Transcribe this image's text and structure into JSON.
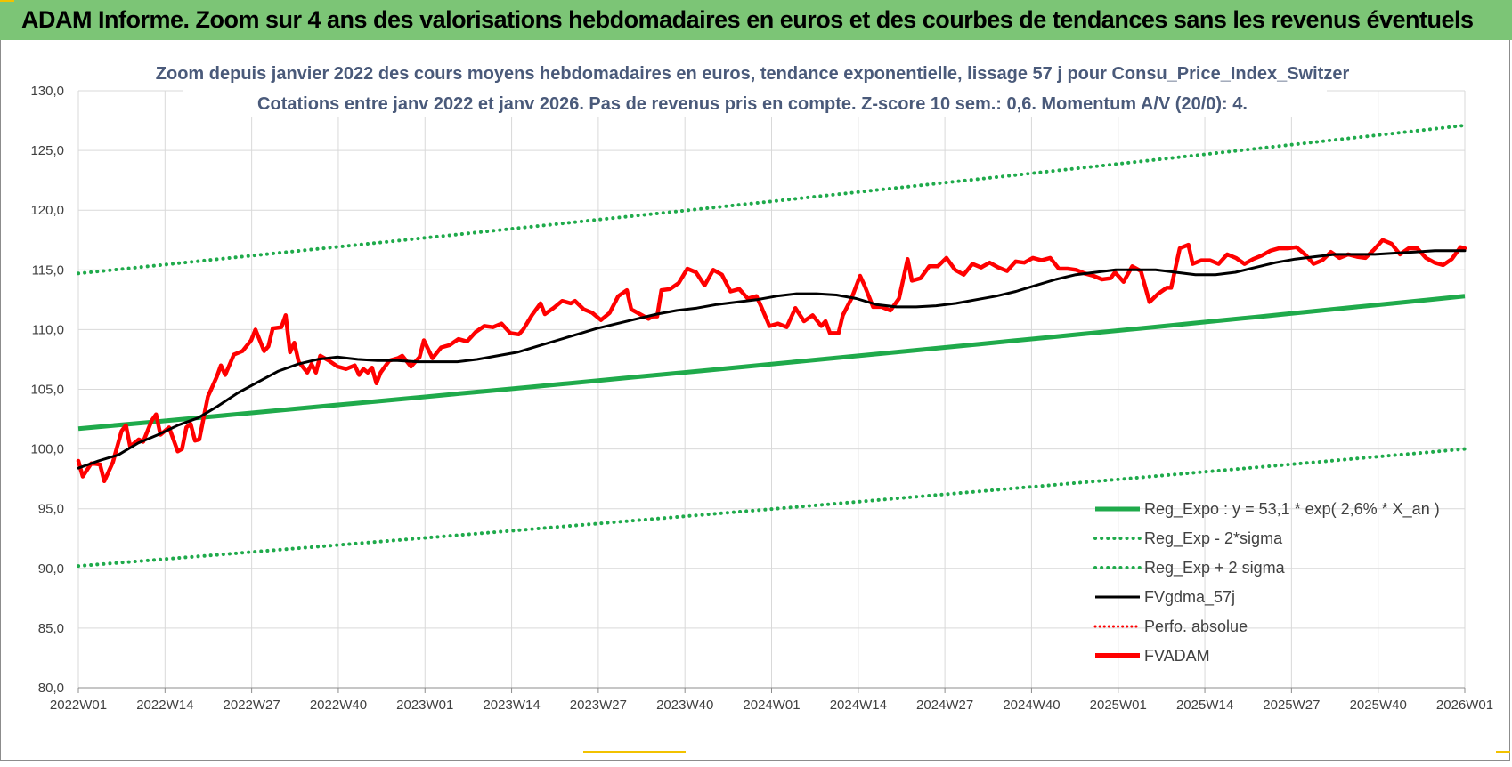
{
  "banner": {
    "title": "ADAM Informe. Zoom sur 4 ans des valorisations hebdomadaires en euros et des courbes de tendances sans les revenus éventuels"
  },
  "colors": {
    "banner_bg": "#7cc576",
    "title_text": "#4a5a7a",
    "trend": "#1faa4b",
    "band": "#1faa4b",
    "smooth": "#000000",
    "perf": "#ff0000",
    "adam": "#ff0000",
    "grid": "#d9d9d9"
  },
  "chart_data": {
    "type": "line",
    "title": "Zoom depuis janvier 2022 des cours moyens hebdomadaires en euros, tendance exponentielle, lissage 57 j pour Consu_Price_Index_Switzer",
    "subtitle": "Cotations entre janv 2022 et janv 2026. Pas de revenus pris en compte. Z-score 10 sem.: 0,6. Momentum A/V (20/0): 4.",
    "xlabel": "",
    "ylabel": "",
    "ylim": [
      80,
      130
    ],
    "y_ticks": [
      "80,0",
      "85,0",
      "90,0",
      "95,0",
      "100,0",
      "105,0",
      "110,0",
      "115,0",
      "120,0",
      "125,0",
      "130,0"
    ],
    "x_ticks": [
      "2022W01",
      "2022W14",
      "2022W27",
      "2022W40",
      "2023W01",
      "2023W14",
      "2023W27",
      "2023W40",
      "2024W01",
      "2024W14",
      "2024W27",
      "2024W40",
      "2025W01",
      "2025W14",
      "2025W27",
      "2025W40",
      "2026W01"
    ],
    "grid": true,
    "legend_position": "bottom-right",
    "series": [
      {
        "name": "Reg_Expo : y = 53,1 * exp( 2,6% *  X_an )",
        "style": "solid-thick",
        "color": "#1faa4b",
        "start": 101.7,
        "end": 112.8
      },
      {
        "name": "Reg_Exp - 2*sigma",
        "style": "dotted",
        "color": "#1faa4b",
        "start": 90.2,
        "end": 100.0
      },
      {
        "name": "Reg_Exp + 2 sigma",
        "style": "dotted",
        "color": "#1faa4b",
        "start": 114.7,
        "end": 127.1
      },
      {
        "name": "FVgdma_57j",
        "style": "solid",
        "color": "#000000",
        "anchors": [
          [
            0,
            98.4
          ],
          [
            4,
            99.0
          ],
          [
            8,
            99.5
          ],
          [
            12,
            100.5
          ],
          [
            16,
            101.2
          ],
          [
            20,
            102.0
          ],
          [
            24,
            102.6
          ],
          [
            28,
            103.6
          ],
          [
            32,
            104.7
          ],
          [
            36,
            105.6
          ],
          [
            40,
            106.5
          ],
          [
            44,
            107.1
          ],
          [
            48,
            107.5
          ],
          [
            52,
            107.7
          ],
          [
            56,
            107.5
          ],
          [
            60,
            107.4
          ],
          [
            64,
            107.4
          ],
          [
            68,
            107.3
          ],
          [
            72,
            107.3
          ],
          [
            76,
            107.3
          ],
          [
            80,
            107.5
          ],
          [
            84,
            107.8
          ],
          [
            88,
            108.1
          ],
          [
            92,
            108.6
          ],
          [
            96,
            109.1
          ],
          [
            100,
            109.6
          ],
          [
            104,
            110.1
          ],
          [
            108,
            110.5
          ],
          [
            112,
            110.9
          ],
          [
            116,
            111.3
          ],
          [
            120,
            111.6
          ],
          [
            124,
            111.8
          ],
          [
            128,
            112.1
          ],
          [
            132,
            112.3
          ],
          [
            136,
            112.5
          ],
          [
            140,
            112.8
          ],
          [
            144,
            113.0
          ],
          [
            148,
            113.0
          ],
          [
            152,
            112.9
          ],
          [
            156,
            112.6
          ],
          [
            160,
            112.1
          ],
          [
            164,
            111.9
          ],
          [
            168,
            111.9
          ],
          [
            172,
            112.0
          ],
          [
            176,
            112.2
          ],
          [
            180,
            112.5
          ],
          [
            184,
            112.8
          ],
          [
            188,
            113.2
          ],
          [
            192,
            113.7
          ],
          [
            196,
            114.2
          ],
          [
            200,
            114.6
          ],
          [
            204,
            114.8
          ],
          [
            208,
            115.0
          ],
          [
            212,
            115.0
          ],
          [
            216,
            115.0
          ],
          [
            220,
            114.8
          ],
          [
            224,
            114.6
          ],
          [
            228,
            114.6
          ],
          [
            232,
            114.8
          ],
          [
            236,
            115.2
          ],
          [
            240,
            115.6
          ],
          [
            244,
            115.9
          ],
          [
            248,
            116.1
          ],
          [
            252,
            116.3
          ],
          [
            256,
            116.3
          ],
          [
            260,
            116.3
          ],
          [
            264,
            116.4
          ],
          [
            268,
            116.5
          ],
          [
            272,
            116.6
          ],
          [
            276,
            116.6
          ],
          [
            278,
            116.6
          ]
        ]
      },
      {
        "name": "Perfo. absolue",
        "style": "dotted",
        "color": "#ff0000",
        "values": []
      },
      {
        "name": "FVADAM",
        "style": "solid-thick",
        "color": "#ff0000",
        "anchors": [
          [
            0,
            99.0
          ],
          [
            1,
            97.7
          ],
          [
            3,
            98.8
          ],
          [
            5,
            98.7
          ],
          [
            6,
            97.3
          ],
          [
            8,
            98.9
          ],
          [
            10,
            101.5
          ],
          [
            11,
            102.0
          ],
          [
            12,
            100.2
          ],
          [
            14,
            100.8
          ],
          [
            15,
            100.6
          ],
          [
            17,
            102.4
          ],
          [
            18,
            102.9
          ],
          [
            19,
            101.2
          ],
          [
            21,
            101.8
          ],
          [
            23,
            99.8
          ],
          [
            24,
            100.0
          ],
          [
            25,
            101.8
          ],
          [
            26,
            102.1
          ],
          [
            27,
            100.7
          ],
          [
            28,
            100.8
          ],
          [
            30,
            104.4
          ],
          [
            32,
            106.0
          ],
          [
            33,
            107.0
          ],
          [
            34,
            106.2
          ],
          [
            36,
            107.9
          ],
          [
            38,
            108.2
          ],
          [
            40,
            109.1
          ],
          [
            41,
            110.0
          ],
          [
            43,
            108.2
          ],
          [
            44,
            108.6
          ],
          [
            45,
            110.1
          ],
          [
            47,
            110.2
          ],
          [
            48,
            111.2
          ],
          [
            49,
            108.1
          ],
          [
            50,
            108.9
          ],
          [
            51,
            107.3
          ],
          [
            53,
            106.4
          ],
          [
            54,
            107.1
          ],
          [
            55,
            106.4
          ],
          [
            56,
            107.8
          ],
          [
            58,
            107.4
          ],
          [
            60,
            106.9
          ],
          [
            62,
            106.7
          ],
          [
            64,
            107.0
          ],
          [
            65,
            106.2
          ],
          [
            66,
            106.7
          ],
          [
            67,
            106.4
          ],
          [
            68,
            106.8
          ],
          [
            69,
            105.5
          ],
          [
            70,
            106.4
          ],
          [
            72,
            107.4
          ],
          [
            74,
            107.6
          ],
          [
            75,
            107.8
          ],
          [
            77,
            106.9
          ],
          [
            79,
            107.7
          ],
          [
            80,
            109.1
          ],
          [
            82,
            107.6
          ],
          [
            84,
            108.5
          ],
          [
            86,
            108.7
          ],
          [
            88,
            109.2
          ],
          [
            90,
            109.0
          ],
          [
            92,
            109.8
          ],
          [
            94,
            110.3
          ],
          [
            96,
            110.2
          ],
          [
            98,
            110.5
          ],
          [
            100,
            109.7
          ],
          [
            102,
            109.6
          ],
          [
            103,
            110.0
          ],
          [
            105,
            111.2
          ],
          [
            107,
            112.2
          ],
          [
            108,
            111.3
          ],
          [
            110,
            111.8
          ],
          [
            112,
            112.4
          ],
          [
            114,
            112.2
          ],
          [
            115,
            112.4
          ],
          [
            117,
            111.7
          ],
          [
            119,
            111.4
          ],
          [
            121,
            110.8
          ],
          [
            123,
            111.4
          ],
          [
            125,
            112.8
          ],
          [
            127,
            113.3
          ],
          [
            128,
            111.7
          ],
          [
            130,
            111.3
          ],
          [
            132,
            110.9
          ],
          [
            133,
            111.1
          ],
          [
            134,
            111.1
          ],
          [
            135,
            113.3
          ],
          [
            137,
            113.4
          ],
          [
            139,
            113.9
          ],
          [
            141,
            115.1
          ],
          [
            143,
            114.8
          ],
          [
            145,
            113.7
          ],
          [
            147,
            115.0
          ],
          [
            149,
            114.6
          ],
          [
            151,
            113.2
          ],
          [
            153,
            113.4
          ],
          [
            155,
            112.6
          ],
          [
            157,
            112.8
          ],
          [
            158,
            112.0
          ],
          [
            160,
            110.3
          ],
          [
            162,
            110.5
          ],
          [
            164,
            110.2
          ],
          [
            166,
            111.8
          ],
          [
            168,
            110.7
          ],
          [
            170,
            111.2
          ],
          [
            172,
            110.3
          ],
          [
            173,
            110.7
          ],
          [
            174,
            109.7
          ],
          [
            176,
            109.7
          ],
          [
            177,
            111.2
          ],
          [
            179,
            112.6
          ],
          [
            181,
            114.5
          ],
          [
            182,
            113.7
          ],
          [
            184,
            111.9
          ],
          [
            186,
            111.9
          ],
          [
            188,
            111.6
          ],
          [
            190,
            112.6
          ],
          [
            192,
            115.9
          ],
          [
            193,
            114.1
          ],
          [
            195,
            114.3
          ],
          [
            197,
            115.3
          ],
          [
            199,
            115.3
          ],
          [
            201,
            116.0
          ],
          [
            203,
            115.0
          ],
          [
            205,
            114.6
          ],
          [
            207,
            115.5
          ],
          [
            209,
            115.2
          ],
          [
            211,
            115.6
          ],
          [
            213,
            115.2
          ],
          [
            215,
            114.9
          ],
          [
            217,
            115.7
          ],
          [
            219,
            115.6
          ],
          [
            221,
            116.0
          ],
          [
            223,
            115.8
          ],
          [
            225,
            116.0
          ],
          [
            227,
            115.1
          ],
          [
            229,
            115.1
          ],
          [
            231,
            115.0
          ],
          [
            233,
            114.7
          ],
          [
            235,
            114.5
          ],
          [
            237,
            114.2
          ],
          [
            239,
            114.3
          ],
          [
            240,
            114.8
          ],
          [
            242,
            114.0
          ],
          [
            244,
            115.3
          ],
          [
            246,
            114.9
          ],
          [
            248,
            112.3
          ],
          [
            250,
            113.0
          ],
          [
            252,
            113.5
          ],
          [
            253,
            113.5
          ],
          [
            255,
            116.8
          ],
          [
            257,
            117.1
          ],
          [
            258,
            115.5
          ],
          [
            260,
            115.8
          ],
          [
            262,
            115.8
          ],
          [
            264,
            115.5
          ],
          [
            266,
            116.3
          ],
          [
            268,
            116.0
          ],
          [
            270,
            115.5
          ],
          [
            272,
            115.9
          ],
          [
            274,
            116.2
          ],
          [
            276,
            116.6
          ],
          [
            278,
            116.8
          ],
          [
            280,
            116.8
          ],
          [
            282,
            116.9
          ],
          [
            284,
            116.3
          ],
          [
            286,
            115.5
          ],
          [
            288,
            115.8
          ],
          [
            290,
            116.5
          ],
          [
            292,
            116.0
          ],
          [
            294,
            116.3
          ],
          [
            296,
            116.1
          ],
          [
            298,
            116.0
          ],
          [
            300,
            116.7
          ],
          [
            302,
            117.5
          ],
          [
            304,
            117.2
          ],
          [
            306,
            116.3
          ],
          [
            308,
            116.8
          ],
          [
            310,
            116.8
          ],
          [
            312,
            116.0
          ],
          [
            314,
            115.6
          ],
          [
            316,
            115.4
          ],
          [
            318,
            115.9
          ],
          [
            320,
            116.9
          ],
          [
            321,
            116.8
          ]
        ]
      }
    ]
  }
}
